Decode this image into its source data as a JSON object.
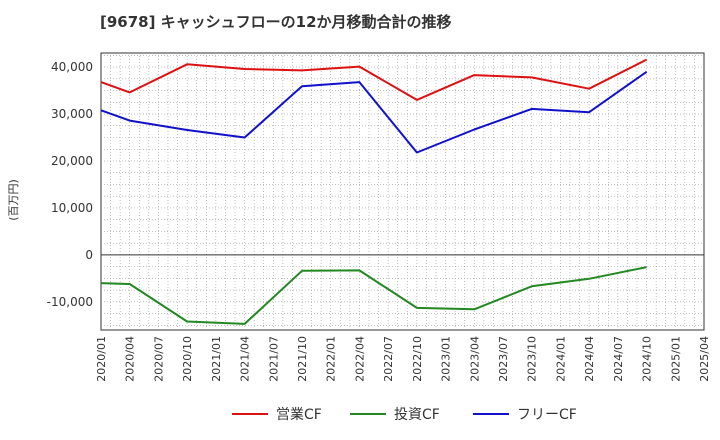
{
  "chart_data": {
    "type": "line",
    "title": "[9678]  キャッシュフローの12か月移動合計の推移",
    "ylabel": "(百万円)",
    "xlabel": "",
    "ylim": [
      -16000,
      43000
    ],
    "yticks": [
      -10000,
      0,
      10000,
      20000,
      30000,
      40000
    ],
    "ytick_labels": [
      "-10,000",
      "0",
      "10,000",
      "20,000",
      "30,000",
      "40,000"
    ],
    "categories": [
      "2020/01",
      "2020/04",
      "2020/07",
      "2020/10",
      "2021/01",
      "2021/04",
      "2021/07",
      "2021/10",
      "2022/01",
      "2022/04",
      "2022/07",
      "2022/10",
      "2023/01",
      "2023/04",
      "2023/07",
      "2023/10",
      "2024/01",
      "2024/04",
      "2024/07",
      "2024/10",
      "2025/01",
      "2025/04"
    ],
    "grid": true,
    "legend_position": "bottom",
    "series": [
      {
        "name": "営業CF",
        "color": "#dd1111",
        "values": [
          36800,
          34600,
          null,
          40600,
          null,
          39600,
          null,
          39300,
          null,
          40100,
          null,
          33000,
          null,
          38300,
          null,
          37800,
          null,
          35400,
          null,
          41600,
          null,
          null
        ]
      },
      {
        "name": "投資CF",
        "color": "#228822",
        "values": [
          -6000,
          -6200,
          null,
          -14200,
          null,
          -14700,
          null,
          -3400,
          null,
          -3300,
          null,
          -11300,
          null,
          -11600,
          null,
          -6700,
          null,
          -5100,
          null,
          -2600,
          null,
          null
        ]
      },
      {
        "name": "フリーCF",
        "color": "#1111cc",
        "values": [
          30800,
          28600,
          null,
          26600,
          null,
          25000,
          null,
          35900,
          null,
          36800,
          null,
          21800,
          null,
          26700,
          null,
          31100,
          null,
          30400,
          null,
          39000,
          null,
          null
        ]
      }
    ]
  }
}
